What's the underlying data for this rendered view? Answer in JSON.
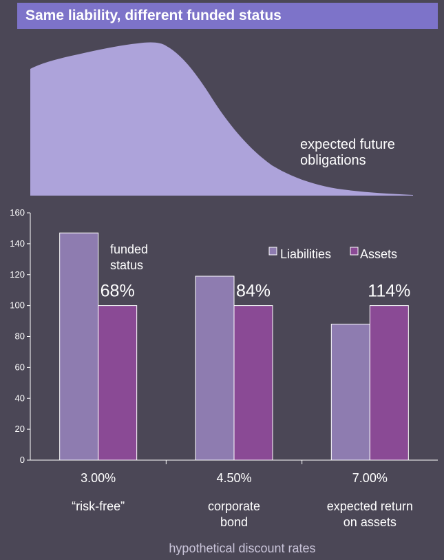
{
  "title": "Same liability, different funded status",
  "curve_label": [
    "expected future",
    "obligations"
  ],
  "colors": {
    "background": "#4b4756",
    "title_bar": "#7d73c9",
    "curve": "#ada3da",
    "liabilities": "#8e7cb0",
    "assets": "#8a4a95",
    "axis": "#ffffff"
  },
  "chart_data": {
    "type": "bar",
    "categories": [
      "3.00%",
      "4.50%",
      "7.00%"
    ],
    "category_descriptions": [
      [
        "“risk-free”"
      ],
      [
        "corporate",
        "bond"
      ],
      [
        "expected return",
        "on assets"
      ]
    ],
    "series": [
      {
        "name": "Liabilities",
        "values": [
          147,
          119,
          88
        ]
      },
      {
        "name": "Assets",
        "values": [
          100,
          100,
          100
        ]
      }
    ],
    "funded_status_label": [
      "funded",
      "status"
    ],
    "funded_status": [
      "68%",
      "84%",
      "114%"
    ],
    "xlabel": "hypothetical discount rates",
    "ylabel": "",
    "ylim": [
      0,
      160
    ],
    "yticks": [
      0,
      20,
      40,
      60,
      80,
      100,
      120,
      140,
      160
    ],
    "legend_position": "top-right",
    "grid": false
  }
}
